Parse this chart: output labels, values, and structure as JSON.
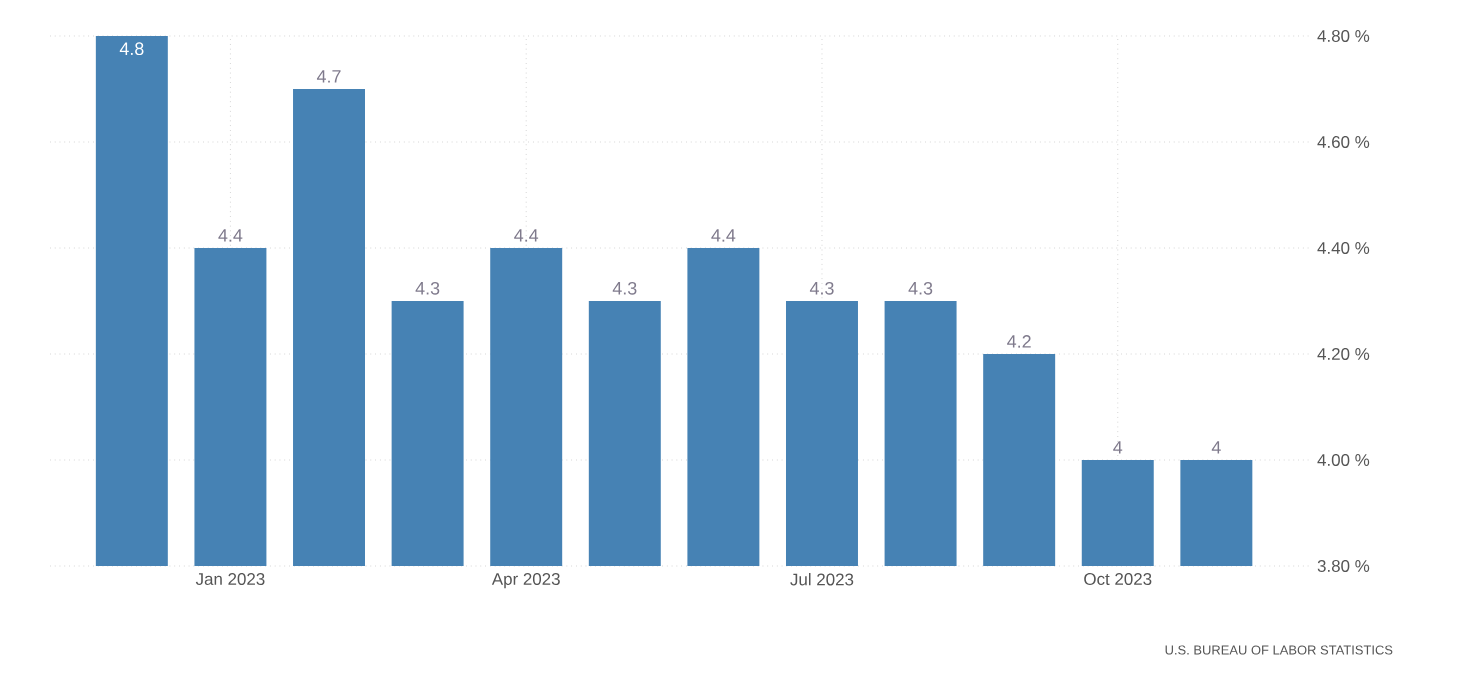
{
  "chart_data": {
    "type": "bar",
    "categories": [
      null,
      "Jan 2023",
      null,
      null,
      "Apr 2023",
      null,
      null,
      "Jul 2023",
      null,
      null,
      "Oct 2023",
      null
    ],
    "values": [
      4.8,
      4.4,
      4.7,
      4.3,
      4.4,
      4.3,
      4.4,
      4.3,
      4.3,
      4.2,
      4,
      4
    ],
    "color": "#4682b4",
    "ylim": [
      3.8,
      4.8
    ],
    "yticks": [
      {
        "value": 3.8,
        "label": "3.80 %"
      },
      {
        "value": 4.0,
        "label": "4.00 %"
      },
      {
        "value": 4.2,
        "label": "4.20 %"
      },
      {
        "value": 4.4,
        "label": "4.40 %"
      },
      {
        "value": 4.6,
        "label": "4.60 %"
      },
      {
        "value": 4.8,
        "label": "4.80 %"
      }
    ],
    "grid": true,
    "data_labels": true,
    "annotations": [
      "U.S. BUREAU OF LABOR STATISTICS"
    ]
  }
}
